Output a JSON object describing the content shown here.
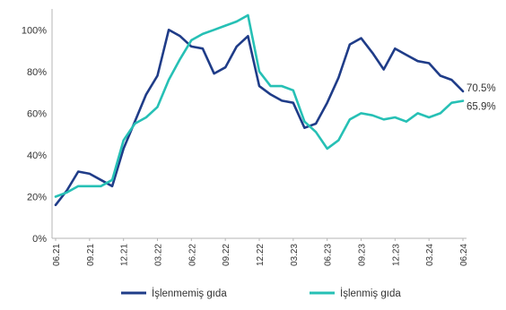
{
  "chart_data": {
    "type": "line",
    "title": "",
    "xlabel": "",
    "ylabel": "",
    "ylim": [
      0,
      110
    ],
    "y_ticks": [
      0,
      20,
      40,
      60,
      80,
      100
    ],
    "y_tick_labels": [
      "0%",
      "20%",
      "40%",
      "60%",
      "80%",
      "100%"
    ],
    "x": [
      "06.21",
      "07.21",
      "08.21",
      "09.21",
      "10.21",
      "11.21",
      "12.21",
      "01.22",
      "02.22",
      "03.22",
      "04.22",
      "05.22",
      "06.22",
      "07.22",
      "08.22",
      "09.22",
      "10.22",
      "11.22",
      "12.22",
      "01.23",
      "02.23",
      "03.23",
      "04.23",
      "05.23",
      "06.23",
      "07.23",
      "08.23",
      "09.23",
      "10.23",
      "11.23",
      "12.23",
      "01.24",
      "02.24",
      "03.24",
      "04.24",
      "05.24",
      "06.24"
    ],
    "x_tick_labels": [
      "06.21",
      "09.21",
      "12.21",
      "03.22",
      "06.22",
      "09.22",
      "12.22",
      "03.23",
      "06.23",
      "09.23",
      "12.23",
      "03.24",
      "06.24"
    ],
    "grid": false,
    "legend_position": "bottom",
    "series": [
      {
        "name": "İşlenmemiş gıda",
        "color": "#1f3c88",
        "values": [
          16,
          23,
          32,
          31,
          28,
          25,
          43,
          56,
          69,
          78,
          100,
          97,
          92,
          91,
          79,
          82,
          92,
          97,
          73,
          69,
          66,
          65,
          53,
          55,
          65,
          77,
          93,
          96,
          89,
          81,
          91,
          88,
          85,
          84,
          78,
          76,
          70.5
        ],
        "end_label": "70.5%"
      },
      {
        "name": "İşlenmiş gıda",
        "color": "#26c0b5",
        "values": [
          20,
          22,
          25,
          25,
          25,
          28,
          47,
          55,
          58,
          63,
          76,
          86,
          95,
          98,
          100,
          102,
          104,
          107,
          80,
          73,
          73,
          71,
          56,
          51,
          43,
          47,
          57,
          60,
          59,
          57,
          58,
          56,
          60,
          58,
          60,
          65,
          65.9
        ],
        "end_label": "65.9%"
      }
    ]
  }
}
